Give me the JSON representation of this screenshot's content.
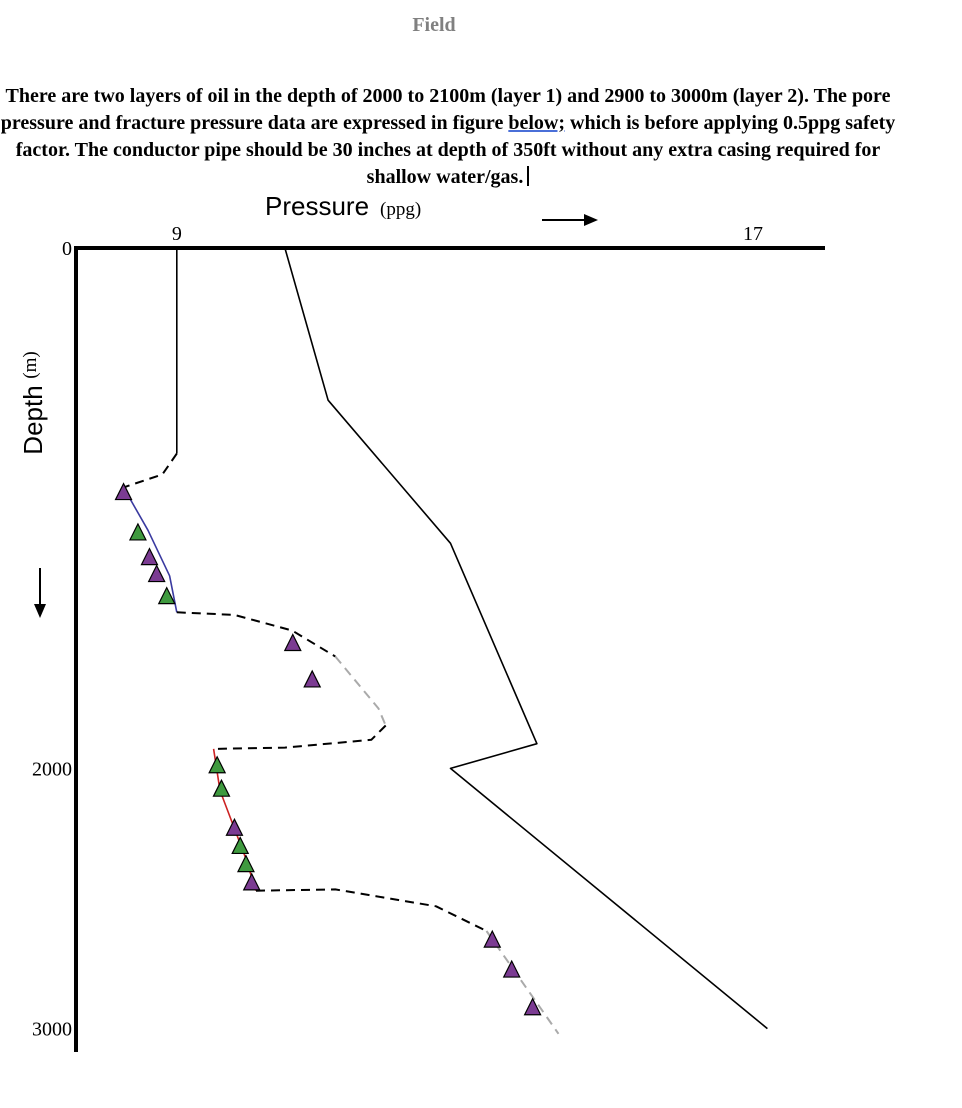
{
  "header": {
    "label": "Field"
  },
  "problem": {
    "part1": "There are two layers of oil in the depth of 2000 to 2100m (layer 1) and 2900 to 3000m (layer 2). The pore pressure and fracture pressure data are expressed in figure ",
    "underlined": "below;",
    "part2": " which is before applying 0.5ppg safety factor. The conductor pipe should be 30 inches at depth of 350ft without any extra casing required for shallow water/gas."
  },
  "chart_data": {
    "type": "line",
    "title": "",
    "xlabel": "Pressure",
    "xunit": "(ppg)",
    "ylabel": "Depth",
    "yunit": "(m)",
    "x_ticks": [
      {
        "value": 9,
        "label": "9"
      },
      {
        "value": 17,
        "label": "17"
      }
    ],
    "y_ticks": [
      {
        "value": 0,
        "label": "0"
      },
      {
        "value": 2000,
        "label": "2000"
      },
      {
        "value": 3000,
        "label": "3000"
      }
    ],
    "xlim": [
      7.6,
      18.0
    ],
    "ylim": [
      0,
      3090
    ],
    "y_inverted": true,
    "x_axis_position": "top",
    "grid": false,
    "legend": "none",
    "series": [
      {
        "role": "fracture-pressure",
        "style": "solid",
        "color": "#000000",
        "points": [
          [
            10.5,
            0
          ],
          [
            11.1,
            585
          ],
          [
            12.8,
            1135
          ],
          [
            14.0,
            1905
          ],
          [
            12.8,
            2000
          ],
          [
            17.2,
            3000
          ]
        ]
      },
      {
        "role": "pore-pressure-upper",
        "style": "solid",
        "color": "#000000",
        "points": [
          [
            9.0,
            0
          ],
          [
            9.0,
            790
          ]
        ]
      },
      {
        "role": "pore-pressure-trend-1",
        "style": "solid",
        "color": "#3a3aa0",
        "points": [
          [
            8.26,
            920
          ],
          [
            8.6,
            1085
          ],
          [
            8.9,
            1260
          ],
          [
            9.0,
            1400
          ]
        ]
      },
      {
        "role": "pore-pressure-trend-2",
        "style": "solid",
        "color": "#cc2222",
        "points": [
          [
            9.51,
            1925
          ],
          [
            9.6,
            2085
          ],
          [
            9.95,
            2340
          ],
          [
            10.1,
            2470
          ]
        ]
      },
      {
        "role": "transition-1",
        "style": "dashed",
        "color": "#000000",
        "points": [
          [
            9.0,
            790
          ],
          [
            8.8,
            870
          ],
          [
            8.26,
            920
          ]
        ]
      },
      {
        "role": "transition-2",
        "style": "dashed",
        "color": "#000000",
        "points": [
          [
            9.0,
            1400
          ],
          [
            9.8,
            1410
          ],
          [
            10.6,
            1470
          ],
          [
            11.2,
            1570
          ]
        ]
      },
      {
        "role": "trend-3",
        "style": "dashed",
        "color": "#aaaaaa",
        "points": [
          [
            11.2,
            1570
          ],
          [
            11.8,
            1770
          ],
          [
            11.9,
            1835
          ]
        ]
      },
      {
        "role": "transition-3",
        "style": "dashed",
        "color": "#000000",
        "points": [
          [
            11.9,
            1835
          ],
          [
            11.7,
            1890
          ],
          [
            10.5,
            1920
          ],
          [
            9.51,
            1925
          ]
        ]
      },
      {
        "role": "transition-4",
        "style": "dashed",
        "color": "#000000",
        "points": [
          [
            10.1,
            2470
          ],
          [
            11.2,
            2465
          ],
          [
            12.6,
            2530
          ],
          [
            13.3,
            2625
          ]
        ]
      },
      {
        "role": "trend-4",
        "style": "dashed",
        "color": "#aaaaaa",
        "points": [
          [
            13.3,
            2625
          ],
          [
            14.3,
            3020
          ]
        ]
      }
    ],
    "markers": [
      {
        "x": 8.26,
        "y": 940,
        "color": "#7b3b92"
      },
      {
        "x": 8.46,
        "y": 1095,
        "color": "#3f9a3f"
      },
      {
        "x": 8.62,
        "y": 1190,
        "color": "#7b3b92"
      },
      {
        "x": 8.72,
        "y": 1255,
        "color": "#7b3b92"
      },
      {
        "x": 8.86,
        "y": 1340,
        "color": "#3f9a3f"
      },
      {
        "x": 10.61,
        "y": 1520,
        "color": "#7b3b92"
      },
      {
        "x": 10.88,
        "y": 1660,
        "color": "#7b3b92"
      },
      {
        "x": 9.56,
        "y": 1990,
        "color": "#3f9a3f"
      },
      {
        "x": 9.62,
        "y": 2080,
        "color": "#3f9a3f"
      },
      {
        "x": 9.8,
        "y": 2230,
        "color": "#7b3b92"
      },
      {
        "x": 9.88,
        "y": 2300,
        "color": "#3f9a3f"
      },
      {
        "x": 9.96,
        "y": 2370,
        "color": "#3f9a3f"
      },
      {
        "x": 10.04,
        "y": 2440,
        "color": "#7b3b92"
      },
      {
        "x": 13.38,
        "y": 2660,
        "color": "#7b3b92"
      },
      {
        "x": 13.65,
        "y": 2775,
        "color": "#7b3b92"
      },
      {
        "x": 13.94,
        "y": 2920,
        "color": "#7b3b92"
      }
    ]
  }
}
